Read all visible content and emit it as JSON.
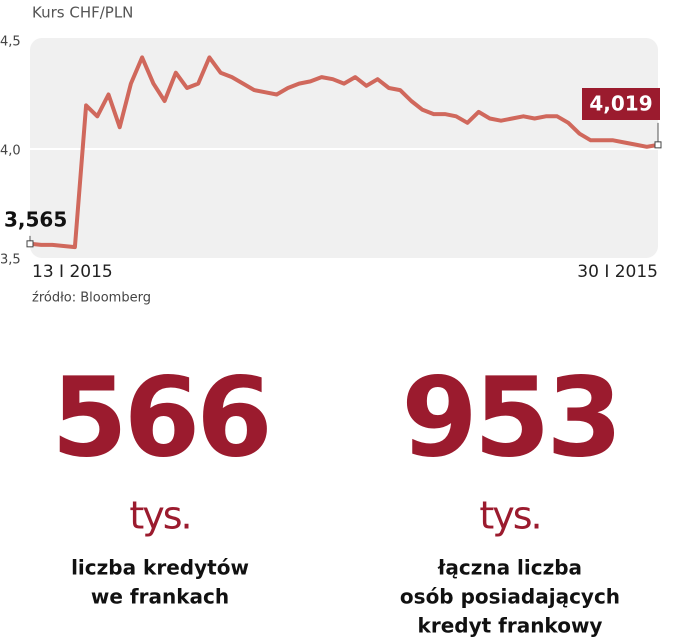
{
  "chart_data": {
    "type": "line",
    "title": "Kurs CHF/PLN",
    "categories": [
      "13 I 2015",
      null,
      null,
      null,
      null,
      null,
      null,
      null,
      null,
      null,
      null,
      null,
      null,
      null,
      null,
      null,
      null,
      null,
      null,
      null,
      null,
      null,
      null,
      null,
      null,
      null,
      null,
      null,
      null,
      null,
      null,
      null,
      null,
      null,
      null,
      null,
      null,
      null,
      null,
      null,
      null,
      null,
      null,
      null,
      null,
      null,
      null,
      null,
      null,
      null,
      null,
      null,
      null,
      null,
      null,
      null,
      "30 I 2015"
    ],
    "values": [
      3.565,
      3.56,
      3.56,
      3.555,
      3.55,
      4.2,
      4.15,
      4.25,
      4.1,
      4.3,
      4.42,
      4.3,
      4.22,
      4.35,
      4.28,
      4.3,
      4.42,
      4.35,
      4.33,
      4.3,
      4.27,
      4.26,
      4.25,
      4.28,
      4.3,
      4.31,
      4.33,
      4.32,
      4.3,
      4.33,
      4.29,
      4.32,
      4.28,
      4.27,
      4.22,
      4.18,
      4.16,
      4.16,
      4.15,
      4.12,
      4.17,
      4.14,
      4.13,
      4.14,
      4.15,
      4.14,
      4.15,
      4.15,
      4.12,
      4.07,
      4.04,
      4.04,
      4.04,
      4.03,
      4.02,
      4.01,
      4.019
    ],
    "value_labels": [
      "3,565",
      null,
      null,
      null,
      null,
      null,
      null,
      null,
      null,
      null,
      null,
      null,
      null,
      null,
      null,
      null,
      null,
      null,
      null,
      null,
      null,
      null,
      null,
      null,
      null,
      null,
      null,
      null,
      null,
      null,
      null,
      null,
      null,
      null,
      null,
      null,
      null,
      null,
      null,
      null,
      null,
      null,
      null,
      null,
      null,
      null,
      null,
      null,
      null,
      null,
      null,
      null,
      null,
      null,
      null,
      null,
      "4,019"
    ],
    "color": "#d0685c",
    "ylim": [
      3.5,
      4.5
    ],
    "yticks": [
      {
        "value": 4.5,
        "label": "4,5"
      },
      {
        "value": 4.0,
        "label": "4,0"
      },
      {
        "value": 3.5,
        "label": "3,5"
      }
    ],
    "grid": true,
    "source": "źródło: Bloomberg"
  },
  "stats": [
    {
      "number": 566,
      "unit": "tys.",
      "lines": [
        "liczba kredytów",
        "we frankach"
      ]
    },
    {
      "number": 953,
      "unit": "tys.",
      "lines": [
        "łączna liczba",
        "osób posiadających",
        "kredyt frankowy"
      ]
    }
  ]
}
